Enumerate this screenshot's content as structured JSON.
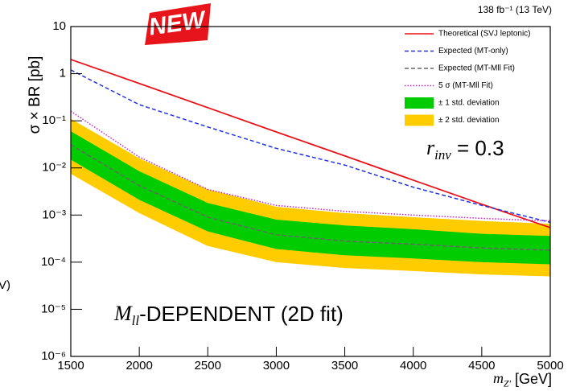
{
  "chart_data": {
    "type": "line",
    "luminosity": "138 fb⁻¹ (13 TeV)",
    "badge": "NEW",
    "fragment": "V)",
    "ylabel": "σ × BR [pb]",
    "xlabel": {
      "symbol": "m",
      "subscript": "Z'",
      "text": " [GeV]"
    },
    "annotation_r": {
      "symbol": "r",
      "subscript": "inv",
      "text": " = 0.3"
    },
    "annotation_m": {
      "symbol": "M",
      "subscript": "ll",
      "text": "-DEPENDENT (2D fit)"
    },
    "log_y": true,
    "legend": "top-right",
    "x": [
      1500,
      2000,
      2500,
      3000,
      3500,
      4000,
      4500,
      5000
    ],
    "xlim": [
      1500,
      5000
    ],
    "xticks": [
      1500,
      2000,
      2500,
      3000,
      3500,
      4000,
      4500,
      5000
    ],
    "ylim": [
      1e-06,
      10
    ],
    "yticks": [
      {
        "value": 1e-06,
        "label": "10⁻⁶"
      },
      {
        "value": 1e-05,
        "label": "10⁻⁵"
      },
      {
        "value": 0.0001,
        "label": "10⁻⁴"
      },
      {
        "value": 0.001,
        "label": "10⁻³"
      },
      {
        "value": 0.01,
        "label": "10⁻²"
      },
      {
        "value": 0.1,
        "label": "10⁻¹"
      },
      1,
      10
    ],
    "series": [
      {
        "name": "Theoretical (SVJ leptonic)",
        "color": "#e8141b",
        "style": "solid",
        "values": [
          2,
          0.62,
          0.19,
          0.058,
          0.018,
          0.0055,
          0.0017,
          0.00054
        ]
      },
      {
        "name": "Expected (MT-only)",
        "color": "#2233dd",
        "style": "dashed",
        "values": [
          1.2,
          0.22,
          0.074,
          0.026,
          0.0115,
          0.0039,
          0.0016,
          0.0007
        ]
      },
      {
        "name": "Expected (MT-Mll Fit)",
        "color": "#666666",
        "style": "dashed",
        "values": [
          0.031,
          0.0042,
          0.0009,
          0.00038,
          0.00028,
          0.00024,
          0.0002,
          0.00018
        ]
      },
      {
        "name": "5 σ (MT-Mll Fit)",
        "color": "#cc22cc",
        "style": "dotted",
        "values": [
          0.16,
          0.017,
          0.0035,
          0.0016,
          0.0012,
          0.001,
          0.00085,
          0.00075
        ]
      }
    ],
    "bands": [
      {
        "name": "± 2 std. deviation",
        "color": "#ffcc00",
        "upper": [
          0.11,
          0.016,
          0.0035,
          0.0015,
          0.0011,
          0.0009,
          0.00075,
          0.00065
        ],
        "lower": [
          0.0075,
          0.0011,
          0.00022,
          0.0001,
          7.5e-05,
          6.5e-05,
          5.5e-05,
          5e-05
        ]
      },
      {
        "name": "± 1 std. deviation",
        "color": "#00cc00",
        "upper": [
          0.06,
          0.0085,
          0.0018,
          0.0008,
          0.0006,
          0.0005,
          0.0004,
          0.00036
        ],
        "lower": [
          0.015,
          0.0021,
          0.00045,
          0.00019,
          0.00014,
          0.00012,
          0.0001,
          9e-05
        ]
      }
    ]
  }
}
